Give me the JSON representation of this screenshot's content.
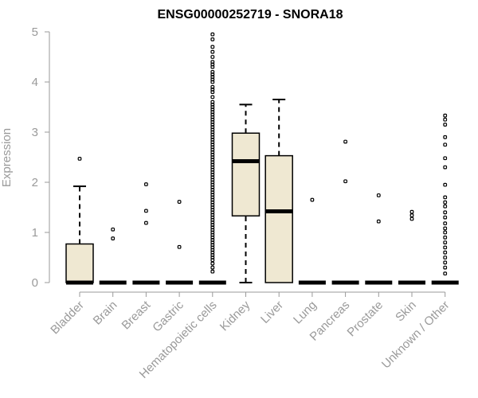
{
  "chart_data": {
    "type": "box",
    "title": "ENSG00000252719 - SNORA18",
    "ylabel": "Expression",
    "xlabel": "",
    "ylim": [
      0,
      5
    ],
    "yticks": [
      0,
      1,
      2,
      3,
      4,
      5
    ],
    "box_fill": "#efe8d2",
    "categories": [
      "Bladder",
      "Brain",
      "Breast",
      "Gastric",
      "Hematopoietic cells",
      "Kidney",
      "Liver",
      "Lung",
      "Pancreas",
      "Prostate",
      "Skin",
      "Unknown / Other"
    ],
    "boxes": [
      {
        "min": 0,
        "q1": 0,
        "median": 0,
        "q3": 0.77,
        "max": 1.92,
        "outliers": [
          2.47
        ]
      },
      {
        "min": 0,
        "q1": 0,
        "median": 0,
        "q3": 0,
        "max": 0,
        "outliers": [
          0.88,
          1.06
        ]
      },
      {
        "min": 0,
        "q1": 0,
        "median": 0,
        "q3": 0,
        "max": 0,
        "outliers": [
          1.19,
          1.43,
          1.96
        ]
      },
      {
        "min": 0,
        "q1": 0,
        "median": 0,
        "q3": 0,
        "max": 0,
        "outliers": [
          0.71,
          1.61
        ]
      },
      {
        "min": 0,
        "q1": 0,
        "median": 0,
        "q3": 0,
        "max": 0,
        "outliers": [
          0.22,
          0.3,
          0.38,
          0.45,
          0.5,
          0.55,
          0.6,
          0.65,
          0.7,
          0.75,
          0.8,
          0.85,
          0.9,
          0.95,
          1.0,
          1.05,
          1.1,
          1.15,
          1.2,
          1.25,
          1.3,
          1.35,
          1.4,
          1.45,
          1.5,
          1.55,
          1.6,
          1.65,
          1.7,
          1.75,
          1.8,
          1.85,
          1.9,
          1.95,
          2.0,
          2.05,
          2.1,
          2.15,
          2.2,
          2.25,
          2.3,
          2.35,
          2.4,
          2.45,
          2.5,
          2.55,
          2.6,
          2.65,
          2.7,
          2.75,
          2.8,
          2.85,
          2.9,
          2.95,
          3.0,
          3.05,
          3.1,
          3.15,
          3.2,
          3.25,
          3.3,
          3.35,
          3.4,
          3.45,
          3.5,
          3.55,
          3.6,
          3.7,
          3.8,
          3.85,
          3.9,
          4.0,
          4.05,
          4.1,
          4.15,
          4.2,
          4.3,
          4.35,
          4.4,
          4.5,
          4.6,
          4.7,
          4.85,
          4.95
        ]
      },
      {
        "min": 0,
        "q1": 1.33,
        "median": 2.42,
        "q3": 2.98,
        "max": 3.55,
        "outliers": []
      },
      {
        "min": 0,
        "q1": 0,
        "median": 1.42,
        "q3": 2.53,
        "max": 3.65,
        "outliers": []
      },
      {
        "min": 0,
        "q1": 0,
        "median": 0,
        "q3": 0,
        "max": 0,
        "outliers": [
          1.65
        ]
      },
      {
        "min": 0,
        "q1": 0,
        "median": 0,
        "q3": 0,
        "max": 0,
        "outliers": [
          2.02,
          2.81
        ]
      },
      {
        "min": 0,
        "q1": 0,
        "median": 0,
        "q3": 0,
        "max": 0,
        "outliers": [
          1.22,
          1.74
        ]
      },
      {
        "min": 0,
        "q1": 0,
        "median": 0,
        "q3": 0,
        "max": 0,
        "outliers": [
          1.27,
          1.34,
          1.41
        ]
      },
      {
        "min": 0,
        "q1": 0,
        "median": 0,
        "q3": 0,
        "max": 0,
        "outliers": [
          0.18,
          0.3,
          0.4,
          0.5,
          0.6,
          0.7,
          0.8,
          0.9,
          1.0,
          1.08,
          1.18,
          1.3,
          1.4,
          1.52,
          1.6,
          1.7,
          1.95,
          2.3,
          2.48,
          2.75,
          2.9,
          3.15,
          3.25,
          3.33
        ]
      }
    ]
  }
}
